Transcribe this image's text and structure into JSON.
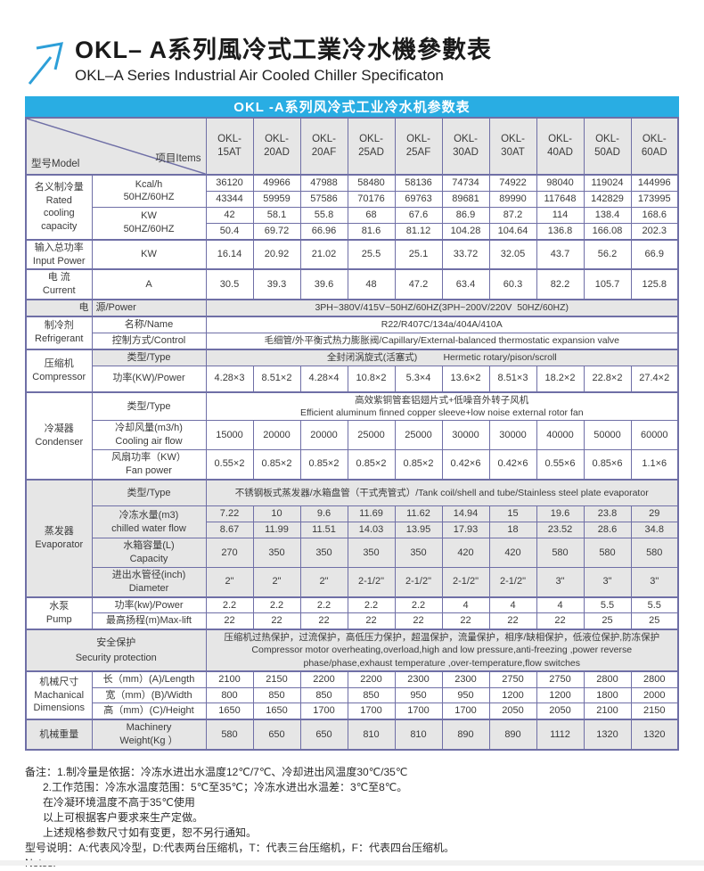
{
  "page": {
    "title_cn": "OKL– A系列風冷式工業冷水機參數表",
    "title_en": "OKL–A Series Industrial Air Cooled Chiller Specificaton"
  },
  "banner": {
    "title": "OKL -A系列风冷式工业冷水机参数表"
  },
  "colors": {
    "accent_blue": "#29ade3",
    "table_border": "#6f6fa6",
    "shaded_cell": "#e6e6e6"
  },
  "table": {
    "corner": {
      "model_label": "型号Model",
      "items_label": "项目Items"
    },
    "models": [
      "OKL-15AT",
      "OKL-20AD",
      "OKL-20AF",
      "OKL-25AD",
      "OKL-25AF",
      "OKL-30AD",
      "OKL-30AT",
      "OKL-40AD",
      "OKL-50AD",
      "OKL-60AD"
    ],
    "sections": [
      {
        "id": "rated-cooling-capacity",
        "category_lines": [
          "名义制冷量",
          "Rated",
          "cooling",
          "capacity"
        ],
        "rows": [
          {
            "type": "pair",
            "item_lines": [
              "Kcal/h",
              "50HZ/60HZ"
            ],
            "values_top": [
              "36120",
              "49966",
              "47988",
              "58480",
              "58136",
              "74734",
              "74922",
              "98040",
              "119024",
              "144996"
            ],
            "values_bottom": [
              "43344",
              "59959",
              "57586",
              "70176",
              "69763",
              "89681",
              "89990",
              "117648",
              "142829",
              "173995"
            ]
          },
          {
            "type": "pair",
            "item_lines": [
              "KW",
              "50HZ/60HZ"
            ],
            "values_top": [
              "42",
              "58.1",
              "55.8",
              "68",
              "67.6",
              "86.9",
              "87.2",
              "114",
              "138.4",
              "168.6"
            ],
            "values_bottom": [
              "50.4",
              "69.72",
              "66.96",
              "81.6",
              "81.12",
              "104.28",
              "104.64",
              "136.8",
              "166.08",
              "202.3"
            ]
          }
        ]
      },
      {
        "id": "input-power",
        "category_lines": [
          "输入总功率",
          "Input Power"
        ],
        "rows": [
          {
            "type": "single",
            "item_lines": [
              "KW"
            ],
            "values": [
              "16.14",
              "20.92",
              "21.02",
              "25.5",
              "25.1",
              "33.72",
              "32.05",
              "43.7",
              "56.2",
              "66.9"
            ]
          }
        ]
      },
      {
        "id": "current",
        "category_lines": [
          "电 流",
          "Current"
        ],
        "rows": [
          {
            "type": "single",
            "item_lines": [
              "A"
            ],
            "values": [
              "30.5",
              "39.3",
              "39.6",
              "48",
              "47.2",
              "63.4",
              "60.3",
              "82.2",
              "105.7",
              "125.8"
            ]
          }
        ]
      },
      {
        "id": "power-source",
        "category_lines": [
          "电"
        ],
        "shaded": true,
        "compact": true,
        "rows": [
          {
            "type": "full",
            "item_lines": [
              "源/Power"
            ],
            "value_lines": [
              "3PH~380V/415V~50HZ/60HZ(3PH~200V/220V  50HZ/60HZ)"
            ]
          }
        ]
      },
      {
        "id": "refrigerant",
        "category_lines": [
          "制冷剂",
          "Refrigerant"
        ],
        "compact": true,
        "rows": [
          {
            "type": "full",
            "item_lines": [
              "名称/Name"
            ],
            "value_lines": [
              "R22/R407C/134a/404A/410A"
            ]
          },
          {
            "type": "full",
            "item_lines": [
              "控制方式/Control"
            ],
            "value_lines": [
              "毛细管/外平衡式热力膨胀阀/Capillary/External-balanced thermostatic expansion valve"
            ]
          }
        ]
      },
      {
        "id": "compressor",
        "category_lines": [
          "压缩机",
          "Compressor"
        ],
        "rows": [
          {
            "type": "full",
            "item_lines": [
              "类型/Type"
            ],
            "shaded": true,
            "compact": true,
            "value_lines": [
              "全封闭涡旋式(活塞式)          Hermetic rotary/pison/scroll"
            ]
          },
          {
            "type": "single",
            "item_lines": [
              "功率(KW)/Power"
            ],
            "values": [
              "4.28×3",
              "8.51×2",
              "4.28×4",
              "10.8×2",
              "5.3×4",
              "13.6×2",
              "8.51×3",
              "18.2×2",
              "22.8×2",
              "27.4×2"
            ]
          }
        ]
      },
      {
        "id": "condenser",
        "category_lines": [
          "冷凝器",
          "Condenser"
        ],
        "rows": [
          {
            "type": "full",
            "item_lines": [
              "类型/Type"
            ],
            "value_lines": [
              "高效紫铜管套铝翅片式+低噪音外转子风机",
              "Efficient aluminum finned copper sleeve+low noise external rotor fan"
            ]
          },
          {
            "type": "single",
            "item_lines": [
              "冷却风量(m3/h)",
              "Cooling air flow"
            ],
            "values": [
              "15000",
              "20000",
              "20000",
              "25000",
              "25000",
              "30000",
              "30000",
              "40000",
              "50000",
              "60000"
            ]
          },
          {
            "type": "single",
            "item_lines": [
              "风扇功率（KW）",
              "Fan power"
            ],
            "values": [
              "0.55×2",
              "0.85×2",
              "0.85×2",
              "0.85×2",
              "0.85×2",
              "0.42×6",
              "0.42×6",
              "0.55×6",
              "0.85×6",
              "1.1×6"
            ]
          }
        ]
      },
      {
        "id": "evaporator",
        "category_lines": [
          "蒸发器",
          "Evaporator"
        ],
        "shaded": true,
        "rows": [
          {
            "type": "full",
            "item_lines": [
              "类型/Type"
            ],
            "value_lines": [
              "不锈钢板式蒸发器/水箱盘管（干式壳管式）/Tank coil/shell and tube/Stainless steel plate evaporator"
            ]
          },
          {
            "type": "pair",
            "item_lines": [
              "冷冻水量(m3)",
              "chilled water flow"
            ],
            "values_top": [
              "7.22",
              "10",
              "9.6",
              "11.69",
              "11.62",
              "14.94",
              "15",
              "19.6",
              "23.8",
              "29"
            ],
            "values_bottom": [
              "8.67",
              "11.99",
              "11.51",
              "14.03",
              "13.95",
              "17.93",
              "18",
              "23.52",
              "28.6",
              "34.8"
            ]
          },
          {
            "type": "single",
            "item_lines": [
              "水箱容量(L)",
              "Capacity"
            ],
            "values": [
              "270",
              "350",
              "350",
              "350",
              "350",
              "420",
              "420",
              "580",
              "580",
              "580"
            ]
          },
          {
            "type": "single",
            "item_lines": [
              "进出水管径(inch)",
              "Diameter"
            ],
            "values": [
              "2\"",
              "2\"",
              "2\"",
              "2-1/2\"",
              "2-1/2\"",
              "2-1/2\"",
              "2-1/2\"",
              "3\"",
              "3\"",
              "3\""
            ]
          }
        ]
      },
      {
        "id": "pump",
        "category_lines": [
          "水泵",
          "Pump"
        ],
        "compact": true,
        "rows": [
          {
            "type": "single",
            "item_lines": [
              "功率(kw)/Power"
            ],
            "values": [
              "2.2",
              "2.2",
              "2.2",
              "2.2",
              "2.2",
              "4",
              "4",
              "4",
              "5.5",
              "5.5"
            ]
          },
          {
            "type": "single",
            "item_lines": [
              "最高扬程(m)Max-lift"
            ],
            "values": [
              "22",
              "22",
              "22",
              "22",
              "22",
              "22",
              "22",
              "22",
              "25",
              "25"
            ]
          }
        ]
      },
      {
        "id": "security-protection",
        "merged_label": true,
        "shaded": true,
        "category_lines": [
          "安全保护",
          "Security protection"
        ],
        "rows": [
          {
            "type": "full",
            "value_lines": [
              "压缩机过热保护，过流保护，高低压力保护，超温保护，流量保护，相序/缺相保护，低液位保护,防冻保护",
              "Compressor motor overheating,overload,high and low pressure,anti-freezing ,power reverse",
              "phase/phase,exhaust temperature ,over-temperature,flow switches"
            ]
          }
        ]
      },
      {
        "id": "dimensions",
        "category_lines": [
          "机械尺寸",
          "Machanical",
          "Dimensions"
        ],
        "compact": true,
        "rows": [
          {
            "type": "single",
            "item_lines": [
              "长（mm）(A)/Length"
            ],
            "values": [
              "2100",
              "2150",
              "2200",
              "2200",
              "2300",
              "2300",
              "2750",
              "2750",
              "2800",
              "2800"
            ]
          },
          {
            "type": "single",
            "item_lines": [
              "宽（mm）(B)/Width"
            ],
            "values": [
              "800",
              "850",
              "850",
              "850",
              "950",
              "950",
              "1200",
              "1200",
              "1800",
              "2000"
            ]
          },
          {
            "type": "single",
            "item_lines": [
              "高（mm）(C)/Height"
            ],
            "values": [
              "1650",
              "1650",
              "1700",
              "1700",
              "1700",
              "1700",
              "2050",
              "2050",
              "2100",
              "2150"
            ]
          }
        ]
      },
      {
        "id": "machine-weight",
        "category_lines": [
          "机械重量"
        ],
        "shaded": true,
        "rows": [
          {
            "type": "single",
            "item_lines": [
              "Machinery",
              "Weight(Kg ）"
            ],
            "values": [
              "580",
              "650",
              "650",
              "810",
              "810",
              "890",
              "890",
              "1112",
              "1320",
              "1320"
            ]
          }
        ]
      }
    ]
  },
  "notes": {
    "lines": [
      {
        "text": "备注：1.制冷量是依据：冷冻水进出水温度12℃/7℃、冷却进出风温度30℃/35℃",
        "indent": false
      },
      {
        "text": "2.工作范围：冷冻水温度范围：5℃至35℃；冷冻水进出水温差：3℃至8℃。",
        "indent": true
      },
      {
        "text": "在冷凝环境温度不高于35℃使用",
        "indent": true
      },
      {
        "text": "以上可根据客户要求来生产定做。",
        "indent": true
      },
      {
        "text": "上述规格参数尺寸如有变更，恕不另行通知。",
        "indent": true
      },
      {
        "text": "型号说明：A:代表风冷型，D:代表两台压缩机，T：代表三台压缩机，F：代表四台压缩机。",
        "indent": false
      },
      {
        "text": "Notes:",
        "indent": false
      }
    ]
  }
}
